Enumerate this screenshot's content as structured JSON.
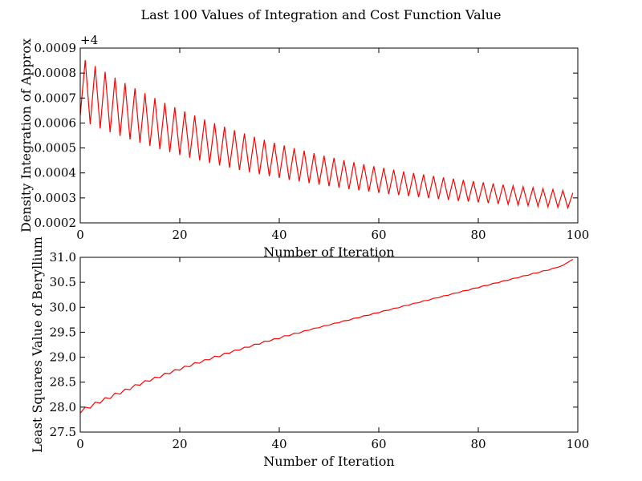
{
  "figure": {
    "title": "Last 100 Values of Integration and Cost Function Value"
  },
  "chart_data": [
    {
      "type": "line",
      "xlabel": "Number of Iteration",
      "ylabel": "Density Integration of Approx",
      "y_offset_label": "+4",
      "xlim": [
        0,
        100
      ],
      "ylim": [
        0.0002,
        0.0009
      ],
      "xticks": [
        0,
        20,
        40,
        60,
        80,
        100
      ],
      "xtick_labels": [
        "0",
        "20",
        "40",
        "60",
        "80",
        "100"
      ],
      "yticks": [
        0.0002,
        0.0003,
        0.0004,
        0.0005,
        0.0006,
        0.0007,
        0.0008,
        0.0009
      ],
      "ytick_labels": [
        "0.0002",
        "0.0003",
        "0.0004",
        "0.0005",
        "0.0006",
        "0.0007",
        "0.0008",
        "0.0009"
      ],
      "grid": false,
      "series": [
        {
          "color": "#ff0000",
          "x": [
            0,
            1,
            2,
            3,
            4,
            5,
            6,
            7,
            8,
            9,
            10,
            11,
            12,
            13,
            14,
            15,
            16,
            17,
            18,
            19,
            20,
            21,
            22,
            23,
            24,
            25,
            26,
            27,
            28,
            29,
            30,
            31,
            32,
            33,
            34,
            35,
            36,
            37,
            38,
            39,
            40,
            41,
            42,
            43,
            44,
            45,
            46,
            47,
            48,
            49,
            50,
            51,
            52,
            53,
            54,
            55,
            56,
            57,
            58,
            59,
            60,
            61,
            62,
            63,
            64,
            65,
            66,
            67,
            68,
            69,
            70,
            71,
            72,
            73,
            74,
            75,
            76,
            77,
            78,
            79,
            80,
            81,
            82,
            83,
            84,
            85,
            86,
            87,
            88,
            89,
            90,
            91,
            92,
            93,
            94,
            95,
            96,
            97,
            98,
            99
          ],
          "y": [
            0.00063,
            0.000852,
            0.000595,
            0.000828,
            0.000578,
            0.000805,
            0.000563,
            0.000782,
            0.000548,
            0.00076,
            0.000534,
            0.000739,
            0.000521,
            0.000719,
            0.000508,
            0.0007,
            0.000495,
            0.000681,
            0.000483,
            0.000663,
            0.000472,
            0.000646,
            0.000461,
            0.00063,
            0.00045,
            0.000614,
            0.00044,
            0.000599,
            0.00043,
            0.000585,
            0.000421,
            0.000571,
            0.000412,
            0.000558,
            0.000403,
            0.000545,
            0.000395,
            0.000533,
            0.000387,
            0.000521,
            0.00038,
            0.00051,
            0.000372,
            0.000499,
            0.000366,
            0.000489,
            0.000359,
            0.000479,
            0.000353,
            0.000469,
            0.000347,
            0.00046,
            0.000341,
            0.000451,
            0.000335,
            0.000443,
            0.00033,
            0.000435,
            0.000325,
            0.000427,
            0.00032,
            0.00042,
            0.000315,
            0.000413,
            0.000311,
            0.000406,
            0.000307,
            0.0004,
            0.000303,
            0.000394,
            0.000299,
            0.000388,
            0.000295,
            0.000382,
            0.000292,
            0.000377,
            0.000288,
            0.000372,
            0.000285,
            0.000367,
            0.000282,
            0.000362,
            0.000279,
            0.000358,
            0.000276,
            0.000353,
            0.000274,
            0.000349,
            0.000271,
            0.000345,
            0.000269,
            0.000341,
            0.000266,
            0.000337,
            0.000264,
            0.000334,
            0.000262,
            0.00033,
            0.00026,
            0.00032
          ]
        }
      ]
    },
    {
      "type": "line",
      "xlabel": "Number of Iteration",
      "ylabel": "Least Squares Value of Beryllium",
      "xlim": [
        0,
        100
      ],
      "ylim": [
        27.5,
        31.0
      ],
      "xticks": [
        0,
        20,
        40,
        60,
        80,
        100
      ],
      "xtick_labels": [
        "0",
        "20",
        "40",
        "60",
        "80",
        "100"
      ],
      "yticks": [
        27.5,
        28.0,
        28.5,
        29.0,
        29.5,
        30.0,
        30.5,
        31.0
      ],
      "ytick_labels": [
        "27.5",
        "28.0",
        "28.5",
        "29.0",
        "29.5",
        "30.0",
        "30.5",
        "31.0"
      ],
      "grid": false,
      "series": [
        {
          "color": "#ff0000",
          "x": [
            0,
            1,
            2,
            3,
            4,
            5,
            6,
            7,
            8,
            9,
            10,
            11,
            12,
            13,
            14,
            15,
            16,
            17,
            18,
            19,
            20,
            21,
            22,
            23,
            24,
            25,
            26,
            27,
            28,
            29,
            30,
            31,
            32,
            33,
            34,
            35,
            36,
            37,
            38,
            39,
            40,
            41,
            42,
            43,
            44,
            45,
            46,
            47,
            48,
            49,
            50,
            51,
            52,
            53,
            54,
            55,
            56,
            57,
            58,
            59,
            60,
            61,
            62,
            63,
            64,
            65,
            66,
            67,
            68,
            69,
            70,
            71,
            72,
            73,
            74,
            75,
            76,
            77,
            78,
            79,
            80,
            81,
            82,
            83,
            84,
            85,
            86,
            87,
            88,
            89,
            90,
            91,
            92,
            93,
            94,
            95,
            96,
            97,
            98,
            99
          ],
          "y": [
            27.88,
            28.0,
            27.98,
            28.1,
            28.08,
            28.19,
            28.17,
            28.28,
            28.26,
            28.36,
            28.35,
            28.45,
            28.44,
            28.53,
            28.52,
            28.6,
            28.59,
            28.68,
            28.67,
            28.75,
            28.74,
            28.82,
            28.81,
            28.89,
            28.88,
            28.95,
            28.95,
            29.02,
            29.01,
            29.08,
            29.08,
            29.14,
            29.14,
            29.2,
            29.2,
            29.26,
            29.26,
            29.32,
            29.32,
            29.37,
            29.37,
            29.43,
            29.43,
            29.48,
            29.48,
            29.53,
            29.54,
            29.58,
            29.59,
            29.63,
            29.64,
            29.68,
            29.69,
            29.73,
            29.74,
            29.78,
            29.79,
            29.83,
            29.84,
            29.88,
            29.89,
            29.93,
            29.94,
            29.98,
            29.99,
            30.03,
            30.04,
            30.08,
            30.09,
            30.13,
            30.14,
            30.18,
            30.19,
            30.23,
            30.24,
            30.28,
            30.29,
            30.33,
            30.34,
            30.38,
            30.39,
            30.43,
            30.44,
            30.48,
            30.49,
            30.53,
            30.54,
            30.58,
            30.59,
            30.63,
            30.64,
            30.68,
            30.69,
            30.73,
            30.74,
            30.78,
            30.8,
            30.84,
            30.9,
            30.96
          ]
        }
      ]
    }
  ]
}
